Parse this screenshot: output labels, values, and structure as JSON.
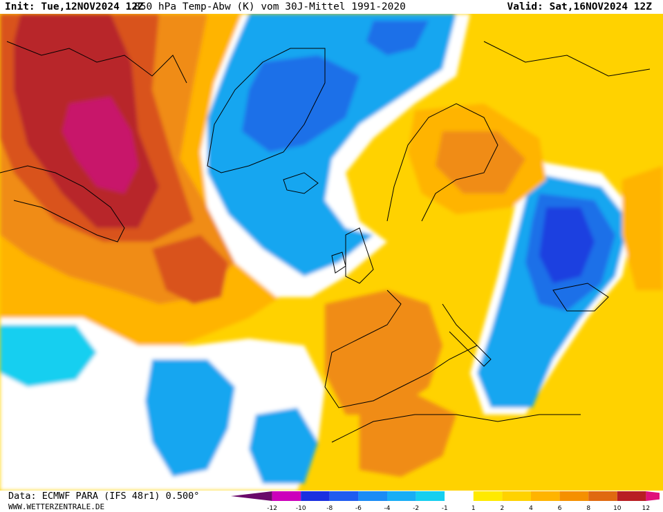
{
  "header": {
    "init": "Init: Tue,12NOV2024 12Z",
    "title": "850 hPa Temp-Abw (K) vom 30J-Mittel 1991-2020",
    "valid": "Valid: Sat,16NOV2024 12Z"
  },
  "footer": {
    "source": "Data: ECMWF PARA (IFS 48r1) 0.500°",
    "website": "WWW.WETTERZENTRALE.DE"
  },
  "legend": {
    "ticks": [
      "-12",
      "-10",
      "-8",
      "-6",
      "-4",
      "-2",
      "-1",
      "1",
      "2",
      "4",
      "6",
      "8",
      "10",
      "12"
    ],
    "colors": [
      "#6a0a6a",
      "#cc00bb",
      "#1a30e0",
      "#1f5cf0",
      "#1a8cf5",
      "#19aef5",
      "#17cff0",
      "#ffffff",
      "#ffea00",
      "#ffd200",
      "#ffb400",
      "#f59000",
      "#e06a10",
      "#b81e23",
      "#e0107a"
    ]
  },
  "colors": {
    "anomaly_max": "#c8156a",
    "very_warm": "#b8262c",
    "warm_strong": "#d9531a",
    "warm": "#f08c12",
    "warm_light": "#ffb400",
    "slightly_warm": "#ffd200",
    "near_zero_warm": "#ffea00",
    "neutral": "#ffffff",
    "near_zero_cold": "#17cff0",
    "cold": "#19a6f0",
    "cold_strong": "#1c6fe8",
    "very_cold": "#1a40e0",
    "coastline": "#000000"
  }
}
